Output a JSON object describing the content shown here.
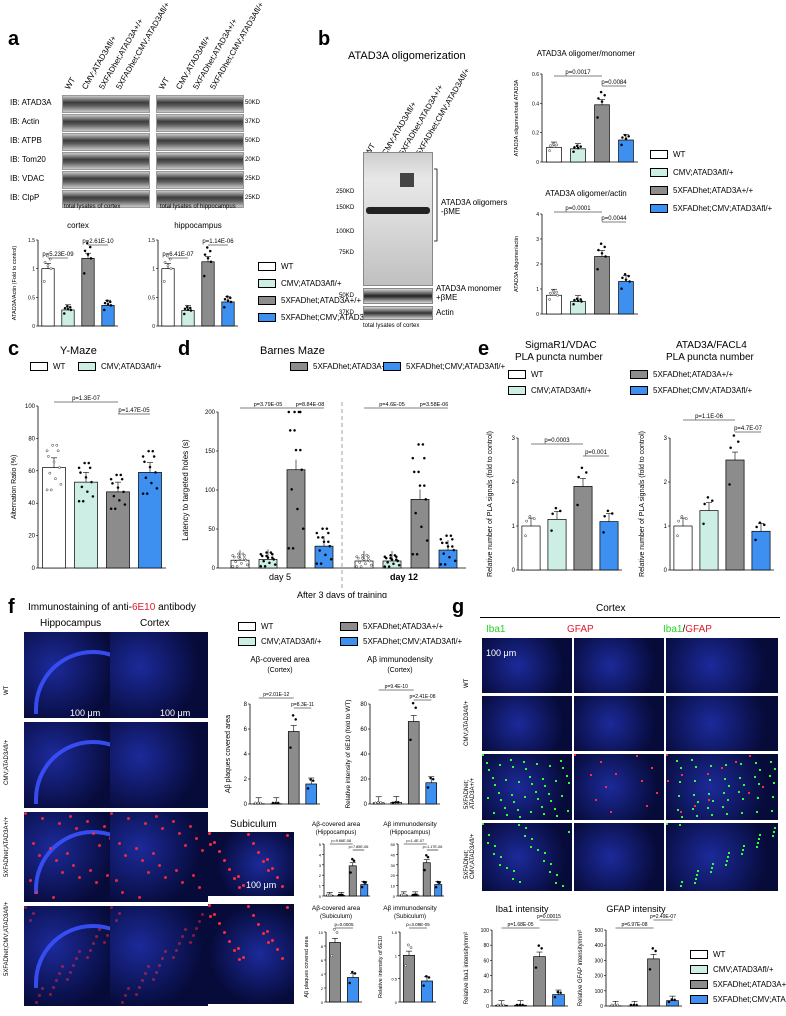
{
  "colors": {
    "wt": "#ffffff",
    "cmv": "#cdeee5",
    "fad": "#8c8c8c",
    "ko": "#3d8ff0"
  },
  "labels": {
    "a": "a",
    "b": "b",
    "c": "c",
    "d": "d",
    "e": "e",
    "f": "f",
    "g": "g"
  },
  "panel_a": {
    "lanes": [
      "WT",
      "CMV;ATAD3Afl/+",
      "5XFADhet;ATAD3A+/+",
      "5XFADhet;CMV;ATAD3Afl/+"
    ],
    "rows": [
      {
        "ib": "IB: ATAD3A",
        "kd": "50KD"
      },
      {
        "ib": "IB: Actin",
        "kd": "37KD"
      },
      {
        "ib": "IB: ATPB",
        "kd": "50KD"
      },
      {
        "ib": "IB: Tom20",
        "kd": "20KD"
      },
      {
        "ib": "IB: VDAC",
        "kd": "25KD"
      },
      {
        "ib": "IB: ClpP",
        "kd": "25KD"
      }
    ],
    "cap_cortex": "total lysates of cortex",
    "cap_hippo": "total lysates of hippocampus",
    "ylabel": "ATAD3A/Actin (Fold to control)",
    "cortex_title": "cortex",
    "hippo_title": "hippocampus",
    "cortex_p1": "p=5.23E-09",
    "cortex_p2": "p=2.61E-10",
    "hippo_p1": "p=6.41E-07",
    "hippo_p2": "p=1.14E-06"
  },
  "legend": {
    "wt": "WT",
    "cmv": "CMV;ATAD3Afl/+",
    "fad": "5XFADhet;ATAD3A+/+",
    "ko": "5XFADhet;CMV;ATAD3Afl/+"
  },
  "panel_b": {
    "title": "ATAD3A oligomerization",
    "lanes": [
      "WT",
      "CMV;ATAD3Afl/+",
      "5XFADhet;ATAD3A+/+",
      "5XFADhet;CMV;ATAD3Afl/+"
    ],
    "mw": [
      "250KD",
      "150KD",
      "100KD",
      "75KD",
      "50KD",
      "37KD"
    ],
    "olig_label": "ATAD3A oligomers -βME",
    "mono_label": "ATAD3A monomer +βME",
    "actin": "Actin",
    "caption": "total lysates of cortex",
    "c1_title": "ATAD3A oligomer/monomer",
    "c1_ylabel": "ATAD3A oligomer/total ATAD3A",
    "c1_p1": "p=0.0017",
    "c1_p2": "p=0.0084",
    "c2_title": "ATAD3A oligomer/actin",
    "c2_ylabel": "ATAD3A oligomer/actin",
    "c2_p1": "p=0.0001",
    "c2_p2": "p=0.0044"
  },
  "panel_c": {
    "title": "Y-Maze",
    "ylabel": "Alternation Ratio (%)",
    "p1": "p=1.3E-07",
    "p2": "p=1.47E-05"
  },
  "panel_d": {
    "title": "Barnes Maze",
    "ylabel": "Latency to targeted holes (s)",
    "day5": "day 5",
    "day12": "day 12",
    "xcap": "After 3 days of training",
    "p1": "p=3.79E-05",
    "p2": "p=8.84E-08",
    "p3": "p=4.6E-05",
    "p4": "p=3.58E-06"
  },
  "panel_e": {
    "t1": "SigmaR1/VDAC",
    "t1b": "PLA puncta number",
    "t2": "ATAD3A/FACL4",
    "t2b": "PLA puncta number",
    "ylabel": "Relative number of PLA signals (fold to control)",
    "p1": "p=0.0003",
    "p2": "p=0.001",
    "p3": "p=1.1E-06",
    "p4": "p=4.7E-07"
  },
  "panel_f": {
    "title_pre": "Immunostaining of anti-",
    "title_ab": "6E10",
    "title_post": " antibody",
    "col1": "Hippocampus",
    "col2": "Cortex",
    "scale": "100 μm",
    "subiculum": "Subiculum",
    "rows": [
      "WT",
      "CMV;ATAD3Afl/+",
      "5XFADhet;ATAD3A+/+",
      "5XFADhet;CMV;ATAD3Afl/+"
    ],
    "ch1_title": "Aβ-covered area",
    "ch1_sub": "(Cortex)",
    "ch1_ylabel": "Aβ plaques covered area",
    "ch1_p1": "p=2.01E-12",
    "ch1_p2": "p=8.3E-11",
    "ch2_title": "Aβ immunodensity",
    "ch2_sub": "(Cortex)",
    "ch2_ylabel": "Relative intensity of 6E10 (fold to WT)",
    "ch2_p1": "p=9.4E-10",
    "ch2_p2": "p=2.41E-08",
    "ch3_title": "Aβ-covered area",
    "ch3_sub": "(Hippocampus)",
    "ch3_p1": "p=9.66E-08",
    "ch3_p2": "p=7.85E-06",
    "ch4_title": "Aβ immunodensity",
    "ch4_sub": "(Hippocampus)",
    "ch4_p1": "p=1.4E-07",
    "ch4_p2": "p=1.17E-06",
    "ch5_title": "Aβ-covered area",
    "ch5_sub": "(Subiculum)",
    "ch5_ylabel": "Aβ plaques covered area",
    "ch5_p": "p=0.0005",
    "ch6_title": "Aβ immunodensity",
    "ch6_sub": "(Subiculum)",
    "ch6_ylabel": "Relative intensity of 6E10",
    "ch6_p": "p=3.09E-05"
  },
  "panel_g": {
    "title": "Cortex",
    "iba1": "Iba1",
    "gfap": "GFAP",
    "slash": "/",
    "scale": "100 μm",
    "rows": [
      "WT",
      "CMV;ATAD3Afl/+",
      "5XFADhet; ATAD3A+/+",
      "5XFADhet; CMV;ATAD3Afl/+"
    ],
    "c1_title": "Iba1 intensity",
    "c1_ylabel": "Relative Iba1 intensity/mm²",
    "c1_p1": "p=1.68E-05",
    "c1_p2": "p=0.00015",
    "c2_title": "GFAP intensity",
    "c2_ylabel": "Relative GFAP intensity/mm²",
    "c2_p1": "p=6.97E-08",
    "c2_p2": "p=2.49E-07"
  },
  "chart_data": [
    {
      "id": "a_cortex",
      "type": "bar",
      "categories": [
        "WT",
        "CMV;ATAD3Afl/+",
        "5XFADhet;ATAD3A+/+",
        "5XFADhet;CMV;ATAD3Afl/+"
      ],
      "values": [
        1.0,
        0.28,
        1.18,
        0.36
      ],
      "ylim": [
        0,
        1.5
      ],
      "yticks": [
        0.0,
        0.5,
        1.0,
        1.5
      ]
    },
    {
      "id": "a_hippo",
      "type": "bar",
      "categories": [
        "WT",
        "CMV;ATAD3Afl/+",
        "5XFADhet;ATAD3A+/+",
        "5XFADhet;CMV;ATAD3Afl/+"
      ],
      "values": [
        1.0,
        0.27,
        1.12,
        0.42
      ],
      "ylim": [
        0,
        1.5
      ],
      "yticks": [
        0.0,
        0.5,
        1.0,
        1.5
      ]
    },
    {
      "id": "b_mono",
      "type": "bar",
      "categories": [
        "WT",
        "CMV;ATAD3Afl/+",
        "5XFADhet;ATAD3A+/+",
        "5XFADhet;CMV;ATAD3Afl/+"
      ],
      "values": [
        0.1,
        0.09,
        0.39,
        0.15
      ],
      "ylim": [
        0,
        0.6
      ],
      "yticks": [
        0.0,
        0.2,
        0.4,
        0.6
      ]
    },
    {
      "id": "b_actin",
      "type": "bar",
      "categories": [
        "WT",
        "CMV;ATAD3Afl/+",
        "5XFADhet;ATAD3A+/+",
        "5XFADhet;CMV;ATAD3Afl/+"
      ],
      "values": [
        0.75,
        0.5,
        2.3,
        1.3
      ],
      "ylim": [
        0,
        4
      ],
      "yticks": [
        0,
        1,
        2,
        3,
        4
      ]
    },
    {
      "id": "c",
      "type": "bar",
      "title": "Y-Maze",
      "categories": [
        "WT",
        "CMV;ATAD3Afl/+",
        "5XFADhet;ATAD3A+/+",
        "5XFADhet;CMV;ATAD3Afl/+"
      ],
      "values": [
        62,
        53,
        47,
        59
      ],
      "ylim": [
        0,
        100
      ],
      "yticks": [
        0,
        20,
        40,
        60,
        80,
        100
      ],
      "ylabel": "Alternation Ratio (%)"
    },
    {
      "id": "d",
      "type": "bar",
      "title": "Barnes Maze",
      "categories": [
        "day 5",
        "day 12"
      ],
      "series": [
        {
          "name": "WT",
          "values": [
            10,
            9
          ]
        },
        {
          "name": "CMV;ATAD3Afl/+",
          "values": [
            11,
            9
          ]
        },
        {
          "name": "5XFADhet;ATAD3A+/+",
          "values": [
            126,
            88
          ]
        },
        {
          "name": "5XFADhet;CMV;ATAD3Afl/+",
          "values": [
            28,
            23
          ]
        }
      ],
      "ylim": [
        0,
        200
      ],
      "yticks": [
        0,
        50,
        100,
        150,
        200
      ],
      "ylabel": "Latency to targeted holes (s)"
    },
    {
      "id": "e1",
      "type": "bar",
      "categories": [
        "WT",
        "CMV;ATAD3Afl/+",
        "5XFADhet;ATAD3A+/+",
        "5XFADhet;CMV;ATAD3Afl/+"
      ],
      "values": [
        1.0,
        1.15,
        1.9,
        1.1
      ],
      "ylim": [
        0,
        3
      ],
      "yticks": [
        0,
        1,
        2,
        3
      ]
    },
    {
      "id": "e2",
      "type": "bar",
      "categories": [
        "WT",
        "CMV;ATAD3Afl/+",
        "5XFADhet;ATAD3A+/+",
        "5XFADhet;CMV;ATAD3Afl/+"
      ],
      "values": [
        1.0,
        1.35,
        2.5,
        0.88
      ],
      "ylim": [
        0,
        3
      ],
      "yticks": [
        0,
        1,
        2,
        3
      ]
    },
    {
      "id": "f1",
      "type": "bar",
      "categories": [
        "WT",
        "CMV;ATAD3Afl/+",
        "5XFADhet;ATAD3A+/+",
        "5XFADhet;CMV;ATAD3Afl/+"
      ],
      "values": [
        0.02,
        0.02,
        5.8,
        1.6
      ],
      "ylim": [
        0,
        8
      ],
      "yticks": [
        0,
        2,
        4,
        6,
        8
      ]
    },
    {
      "id": "f2",
      "type": "bar",
      "categories": [
        "WT",
        "CMV;ATAD3Afl/+",
        "5XFADhet;ATAD3A+/+",
        "5XFADhet;CMV;ATAD3Afl/+"
      ],
      "values": [
        1,
        1.2,
        66,
        17
      ],
      "ylim": [
        0,
        80
      ],
      "yticks": [
        0,
        20,
        40,
        60,
        80
      ]
    },
    {
      "id": "f3",
      "type": "bar",
      "categories": [
        "WT",
        "CMV;ATAD3Afl/+",
        "5XFADhet;ATAD3A+/+",
        "5XFADhet;CMV;ATAD3Afl/+"
      ],
      "values": [
        0.05,
        0.05,
        2.9,
        1.1
      ],
      "ylim": [
        0,
        5
      ],
      "yticks": [
        0,
        1,
        2,
        3,
        4,
        5
      ]
    },
    {
      "id": "f4",
      "type": "bar",
      "categories": [
        "WT",
        "CMV;ATAD3Afl/+",
        "5XFADhet;ATAD3A+/+",
        "5XFADhet;CMV;ATAD3Afl/+"
      ],
      "values": [
        1,
        1,
        32,
        11
      ],
      "ylim": [
        0,
        50
      ],
      "yticks": [
        0,
        10,
        20,
        30,
        40,
        50
      ]
    },
    {
      "id": "f5",
      "type": "bar",
      "categories": [
        "5XFADhet;ATAD3A+/+",
        "5XFADhet;CMV;ATAD3Afl/+"
      ],
      "values": [
        8.5,
        3.5
      ],
      "ylim": [
        0,
        10
      ],
      "yticks": [
        0,
        2,
        4,
        6,
        8,
        10
      ]
    },
    {
      "id": "f6",
      "type": "bar",
      "categories": [
        "5XFADhet;ATAD3A+/+",
        "5XFADhet;CMV;ATAD3Afl/+"
      ],
      "values": [
        1.0,
        0.45
      ],
      "ylim": [
        0,
        1.5
      ],
      "yticks": [
        0.0,
        0.5,
        1.0,
        1.5
      ]
    },
    {
      "id": "g1",
      "type": "bar",
      "categories": [
        "WT",
        "CMV;ATAD3Afl/+",
        "5XFADhet;ATAD3A+/+",
        "5XFADhet;CMV;ATAD3Afl/+"
      ],
      "values": [
        1,
        1,
        65,
        15
      ],
      "ylim": [
        0,
        100
      ],
      "yticks": [
        0,
        20,
        40,
        60,
        80,
        100
      ]
    },
    {
      "id": "g2",
      "type": "bar",
      "categories": [
        "WT",
        "CMV;ATAD3Afl/+",
        "5XFADhet;ATAD3A+/+",
        "5XFADhet;CMV;ATAD3Afl/+"
      ],
      "values": [
        1,
        1,
        310,
        35
      ],
      "ylim": [
        0,
        500
      ],
      "yticks": [
        0,
        100,
        200,
        300,
        400,
        500
      ]
    }
  ]
}
